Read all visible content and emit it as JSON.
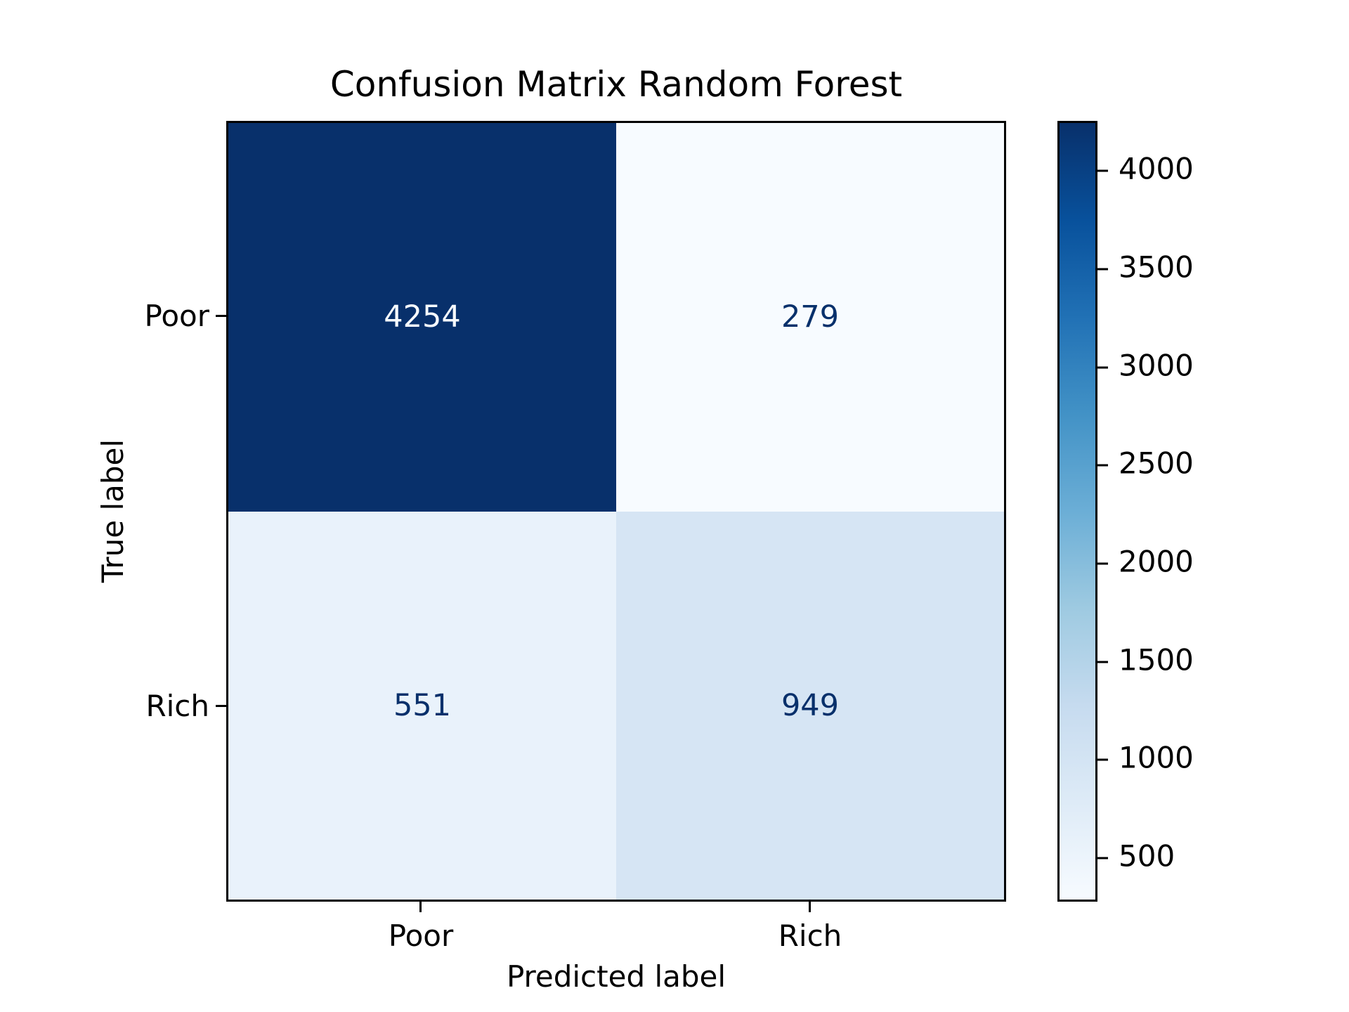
{
  "title": "Confusion Matrix Random Forest",
  "xlabel": "Predicted label",
  "ylabel": "True label",
  "x_ticks": [
    "Poor",
    "Rich"
  ],
  "y_ticks": [
    "Poor",
    "Rich"
  ],
  "cells": [
    {
      "value": "4254",
      "bg": "#08306b",
      "fg": "#f7fbff"
    },
    {
      "value": "279",
      "bg": "#f7fbff",
      "fg": "#08306b"
    },
    {
      "value": "551",
      "bg": "#e9f2fb",
      "fg": "#08306b"
    },
    {
      "value": "949",
      "bg": "#d6e5f4",
      "fg": "#08306b"
    }
  ],
  "colorbar": {
    "gradient": [
      "#f7fbff",
      "#deebf7",
      "#c6dbef",
      "#9ecae1",
      "#6baed6",
      "#4292c6",
      "#2171b5",
      "#08519c",
      "#08306b"
    ],
    "ticks": [
      {
        "label": "500",
        "pos": 5.56
      },
      {
        "label": "1000",
        "pos": 18.14
      },
      {
        "label": "1500",
        "pos": 30.72
      },
      {
        "label": "2000",
        "pos": 43.3
      },
      {
        "label": "2500",
        "pos": 55.87
      },
      {
        "label": "3000",
        "pos": 68.45
      },
      {
        "label": "3500",
        "pos": 81.03
      },
      {
        "label": "4000",
        "pos": 93.61
      }
    ]
  },
  "chart_data": {
    "type": "heatmap",
    "title": "Confusion Matrix Random Forest",
    "xlabel": "Predicted label",
    "ylabel": "True label",
    "x_categories": [
      "Poor",
      "Rich"
    ],
    "y_categories": [
      "Poor",
      "Rich"
    ],
    "matrix": [
      [
        4254,
        279
      ],
      [
        551,
        949
      ]
    ],
    "colormap": "Blues",
    "vmin": 279,
    "vmax": 4254,
    "colorbar_ticks": [
      500,
      1000,
      1500,
      2000,
      2500,
      3000,
      3500,
      4000
    ],
    "legend_position": "colorbar-right",
    "grid": false
  }
}
